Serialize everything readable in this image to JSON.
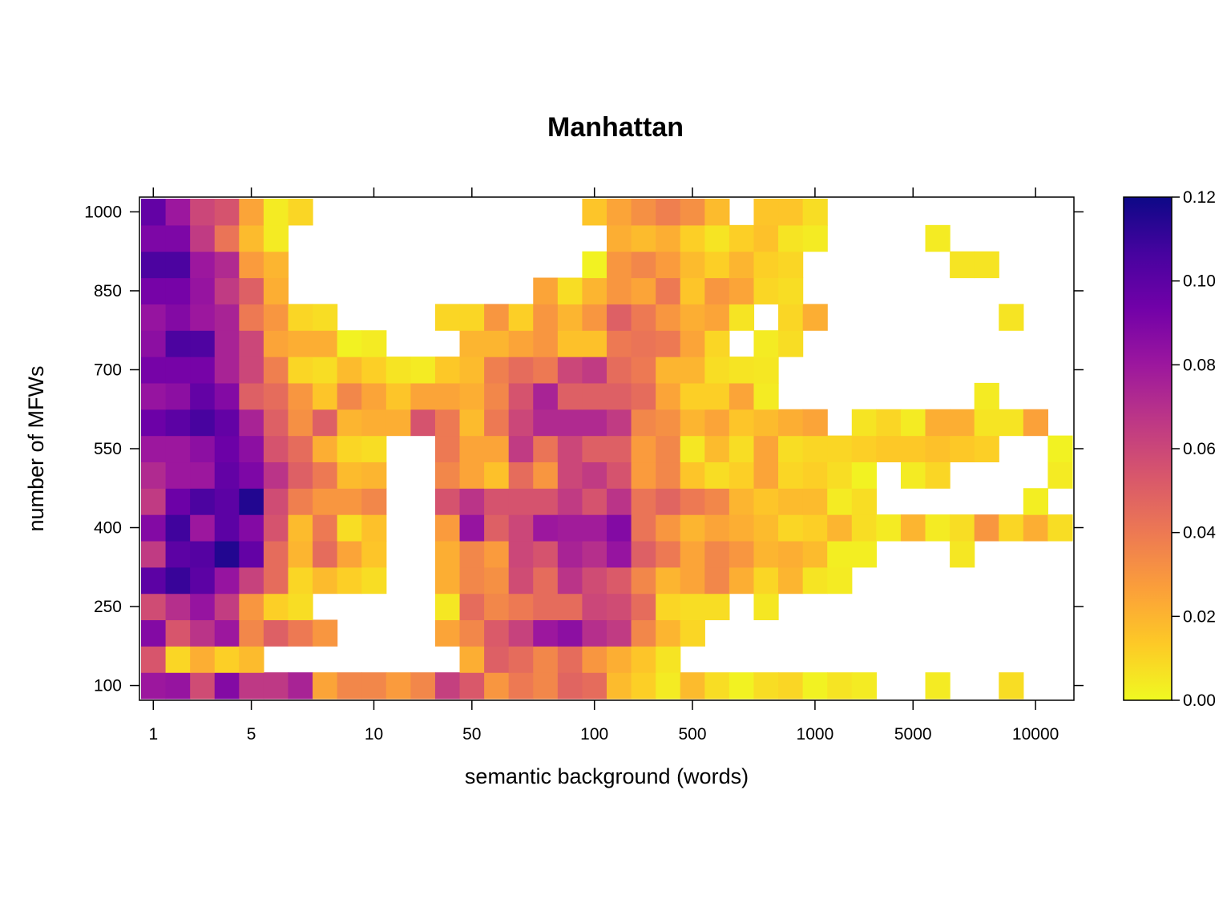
{
  "chart_data": {
    "type": "heatmap",
    "title": "Manhattan",
    "xlabel": "semantic background (words)",
    "ylabel": "number of MFWs",
    "x_categories": [
      "1",
      "2",
      "3",
      "4",
      "5",
      "6",
      "7",
      "8",
      "9",
      "10",
      "20",
      "30",
      "40",
      "50",
      "60",
      "70",
      "80",
      "90",
      "100",
      "200",
      "300",
      "400",
      "500",
      "600",
      "700",
      "800",
      "900",
      "1000",
      "2000",
      "3000",
      "4000",
      "5000",
      "6000",
      "7000",
      "8000",
      "9000",
      "10000",
      "20000"
    ],
    "x_tick_labels": [
      "1",
      "5",
      "10",
      "50",
      "100",
      "500",
      "1000",
      "5000",
      "10000"
    ],
    "y_categories": [
      100,
      150,
      200,
      250,
      300,
      350,
      400,
      450,
      500,
      550,
      600,
      650,
      700,
      750,
      800,
      850,
      900,
      950,
      1000
    ],
    "y_tick_labels": [
      100,
      250,
      400,
      550,
      700,
      850,
      1000
    ],
    "colorbar": {
      "min": 0,
      "max": 0.12,
      "ticks": [
        "0.00",
        "0.02",
        "0.04",
        "0.06",
        "0.08",
        "0.10",
        "0.12"
      ]
    },
    "palette": [
      "#f0f921",
      "#fdca26",
      "#fb9f3a",
      "#ed7953",
      "#d8576b",
      "#bd3786",
      "#9c179e",
      "#7201a8",
      "#46039f",
      "#0d0887"
    ],
    "values": [
      [
        0.08,
        0.082,
        0.058,
        0.088,
        0.066,
        0.066,
        0.075,
        0.025,
        0.035,
        0.035,
        0.028,
        0.035,
        0.063,
        0.053,
        0.03,
        0.04,
        0.035,
        0.048,
        0.045,
        0.018,
        0.012,
        0.004,
        0.018,
        0.008,
        0.002,
        0.008,
        0.01,
        0.002,
        0.006,
        0.004,
        null,
        null,
        0.004,
        null,
        null,
        0.008,
        null,
        null
      ],
      [
        0.054,
        0.01,
        0.022,
        0.012,
        0.018,
        null,
        null,
        null,
        null,
        null,
        null,
        null,
        null,
        0.022,
        0.05,
        0.045,
        0.035,
        0.045,
        0.03,
        0.022,
        0.015,
        0.006,
        null,
        null,
        null,
        null,
        null,
        null,
        null,
        null,
        null,
        null,
        null,
        null,
        null,
        null,
        null,
        null
      ],
      [
        0.088,
        0.054,
        0.068,
        0.08,
        0.035,
        0.05,
        0.04,
        0.03,
        null,
        null,
        null,
        null,
        0.025,
        0.035,
        0.052,
        0.062,
        0.08,
        0.085,
        0.07,
        0.065,
        0.035,
        0.02,
        0.01,
        null,
        null,
        null,
        null,
        null,
        null,
        null,
        null,
        null,
        null,
        null,
        null,
        null,
        null,
        null
      ],
      [
        0.058,
        0.07,
        0.082,
        0.064,
        0.03,
        0.012,
        0.008,
        null,
        null,
        null,
        null,
        null,
        0.005,
        0.045,
        0.035,
        0.04,
        0.045,
        0.045,
        0.06,
        0.058,
        0.045,
        0.01,
        0.008,
        0.008,
        null,
        0.005,
        null,
        null,
        null,
        null,
        null,
        null,
        null,
        null,
        null,
        null,
        null,
        null
      ],
      [
        0.1,
        0.11,
        0.1,
        0.082,
        0.062,
        0.045,
        0.01,
        0.018,
        0.012,
        0.008,
        null,
        null,
        0.022,
        0.035,
        0.032,
        0.058,
        0.045,
        0.068,
        0.058,
        0.052,
        0.035,
        0.02,
        0.025,
        0.035,
        0.022,
        0.01,
        0.02,
        0.006,
        0.004,
        null,
        null,
        null,
        null,
        null,
        null,
        null,
        null,
        null
      ],
      [
        0.065,
        0.1,
        0.102,
        0.115,
        0.098,
        0.045,
        0.02,
        0.045,
        0.025,
        0.015,
        null,
        null,
        0.022,
        0.035,
        0.028,
        0.06,
        0.055,
        0.075,
        0.07,
        0.082,
        0.05,
        0.04,
        0.025,
        0.035,
        0.03,
        0.02,
        0.022,
        0.018,
        0.003,
        0.003,
        null,
        null,
        null,
        0.005,
        null,
        null,
        null,
        null
      ],
      [
        0.088,
        0.108,
        0.08,
        0.1,
        0.088,
        0.055,
        0.018,
        0.04,
        0.008,
        0.016,
        null,
        null,
        0.028,
        0.082,
        0.05,
        0.06,
        0.08,
        0.078,
        0.078,
        0.088,
        0.042,
        0.03,
        0.02,
        0.025,
        0.022,
        0.018,
        0.01,
        0.012,
        0.02,
        0.008,
        0.004,
        0.02,
        0.004,
        0.008,
        0.03,
        0.01,
        0.022,
        0.008
      ],
      [
        0.065,
        0.095,
        0.105,
        0.1,
        0.115,
        0.058,
        0.038,
        0.03,
        0.03,
        0.035,
        null,
        null,
        0.055,
        0.068,
        0.055,
        0.055,
        0.055,
        0.065,
        0.055,
        0.068,
        0.042,
        0.048,
        0.04,
        0.035,
        0.02,
        0.015,
        0.018,
        0.018,
        0.004,
        0.008,
        null,
        null,
        null,
        null,
        null,
        null,
        0.003,
        null
      ],
      [
        0.072,
        0.08,
        0.08,
        0.098,
        0.09,
        0.068,
        0.05,
        0.04,
        0.018,
        0.02,
        null,
        null,
        0.035,
        0.025,
        0.016,
        0.045,
        0.03,
        0.06,
        0.065,
        0.055,
        0.028,
        0.035,
        0.015,
        0.008,
        0.012,
        0.025,
        0.01,
        0.012,
        0.008,
        0.002,
        null,
        0.004,
        0.01,
        null,
        null,
        null,
        null,
        0.004
      ],
      [
        0.08,
        0.08,
        0.085,
        0.095,
        0.085,
        0.055,
        0.045,
        0.022,
        0.01,
        0.008,
        null,
        null,
        0.04,
        0.025,
        0.025,
        0.065,
        0.042,
        0.06,
        0.05,
        0.05,
        0.028,
        0.035,
        0.005,
        0.018,
        0.008,
        0.025,
        0.008,
        0.01,
        0.01,
        0.012,
        0.014,
        0.014,
        0.016,
        0.014,
        0.012,
        null,
        null,
        0.002
      ],
      [
        0.095,
        0.1,
        0.106,
        0.098,
        0.075,
        0.05,
        0.032,
        0.05,
        0.02,
        0.022,
        0.022,
        0.055,
        0.04,
        0.018,
        0.04,
        0.06,
        0.072,
        0.072,
        0.072,
        0.065,
        0.035,
        0.032,
        0.02,
        0.025,
        0.015,
        0.018,
        0.022,
        0.025,
        null,
        0.006,
        0.01,
        0.004,
        0.022,
        0.022,
        0.006,
        0.006,
        0.026,
        null
      ],
      [
        0.082,
        0.085,
        0.098,
        0.088,
        0.05,
        0.045,
        0.03,
        0.015,
        0.035,
        0.025,
        0.015,
        0.025,
        0.025,
        0.022,
        0.035,
        0.055,
        0.075,
        0.05,
        0.05,
        0.05,
        0.045,
        0.025,
        0.012,
        0.012,
        0.025,
        0.004,
        null,
        null,
        null,
        null,
        null,
        null,
        null,
        null,
        0.004,
        null,
        null,
        null
      ],
      [
        0.092,
        0.092,
        0.092,
        0.075,
        0.06,
        0.038,
        0.01,
        0.008,
        0.018,
        0.012,
        0.006,
        0.004,
        0.014,
        0.018,
        0.038,
        0.045,
        0.04,
        0.06,
        0.065,
        0.045,
        0.04,
        0.02,
        0.02,
        0.008,
        0.006,
        0.005,
        null,
        null,
        null,
        null,
        null,
        null,
        null,
        null,
        null,
        null,
        null,
        null
      ],
      [
        0.085,
        0.105,
        0.104,
        0.075,
        0.06,
        0.025,
        0.022,
        0.022,
        0.002,
        0.004,
        null,
        null,
        null,
        0.02,
        0.02,
        0.025,
        0.03,
        0.016,
        0.016,
        0.04,
        0.042,
        0.04,
        0.025,
        0.01,
        null,
        0.004,
        0.008,
        null,
        null,
        null,
        null,
        null,
        null,
        null,
        null,
        null,
        null,
        null
      ],
      [
        0.082,
        0.088,
        0.08,
        0.075,
        0.04,
        0.03,
        0.01,
        0.008,
        null,
        null,
        null,
        null,
        0.01,
        0.01,
        0.03,
        0.012,
        0.03,
        0.02,
        0.03,
        0.05,
        0.04,
        0.03,
        0.022,
        0.025,
        0.006,
        null,
        0.01,
        0.022,
        null,
        null,
        null,
        null,
        null,
        null,
        null,
        0.006,
        null,
        null
      ],
      [
        0.092,
        0.092,
        0.082,
        0.065,
        0.05,
        0.022,
        null,
        null,
        null,
        null,
        null,
        null,
        null,
        null,
        null,
        null,
        0.025,
        0.008,
        0.02,
        0.03,
        0.025,
        0.04,
        0.015,
        0.03,
        0.025,
        0.01,
        0.008,
        null,
        null,
        null,
        null,
        null,
        null,
        null,
        null,
        null,
        null,
        null
      ],
      [
        0.105,
        0.105,
        0.08,
        0.072,
        0.028,
        0.02,
        null,
        null,
        null,
        null,
        null,
        null,
        null,
        null,
        null,
        null,
        null,
        null,
        0.002,
        0.03,
        0.035,
        0.028,
        0.018,
        0.012,
        0.02,
        0.012,
        0.01,
        null,
        null,
        null,
        null,
        null,
        null,
        0.006,
        0.006,
        null,
        null,
        null
      ],
      [
        0.09,
        0.09,
        0.065,
        0.042,
        0.018,
        0.004,
        null,
        null,
        null,
        null,
        null,
        null,
        null,
        null,
        null,
        null,
        null,
        null,
        null,
        0.022,
        0.018,
        0.022,
        0.012,
        0.006,
        0.012,
        0.016,
        0.006,
        0.004,
        null,
        null,
        null,
        null,
        0.004,
        null,
        null,
        null,
        null,
        null
      ],
      [
        0.098,
        0.08,
        0.06,
        0.055,
        0.025,
        0.004,
        0.01,
        null,
        null,
        null,
        null,
        null,
        null,
        null,
        null,
        null,
        null,
        null,
        0.015,
        0.025,
        0.032,
        0.038,
        0.032,
        0.018,
        null,
        0.015,
        0.015,
        0.008,
        null,
        null,
        null,
        null,
        null,
        null,
        null,
        null,
        null,
        null
      ]
    ]
  }
}
